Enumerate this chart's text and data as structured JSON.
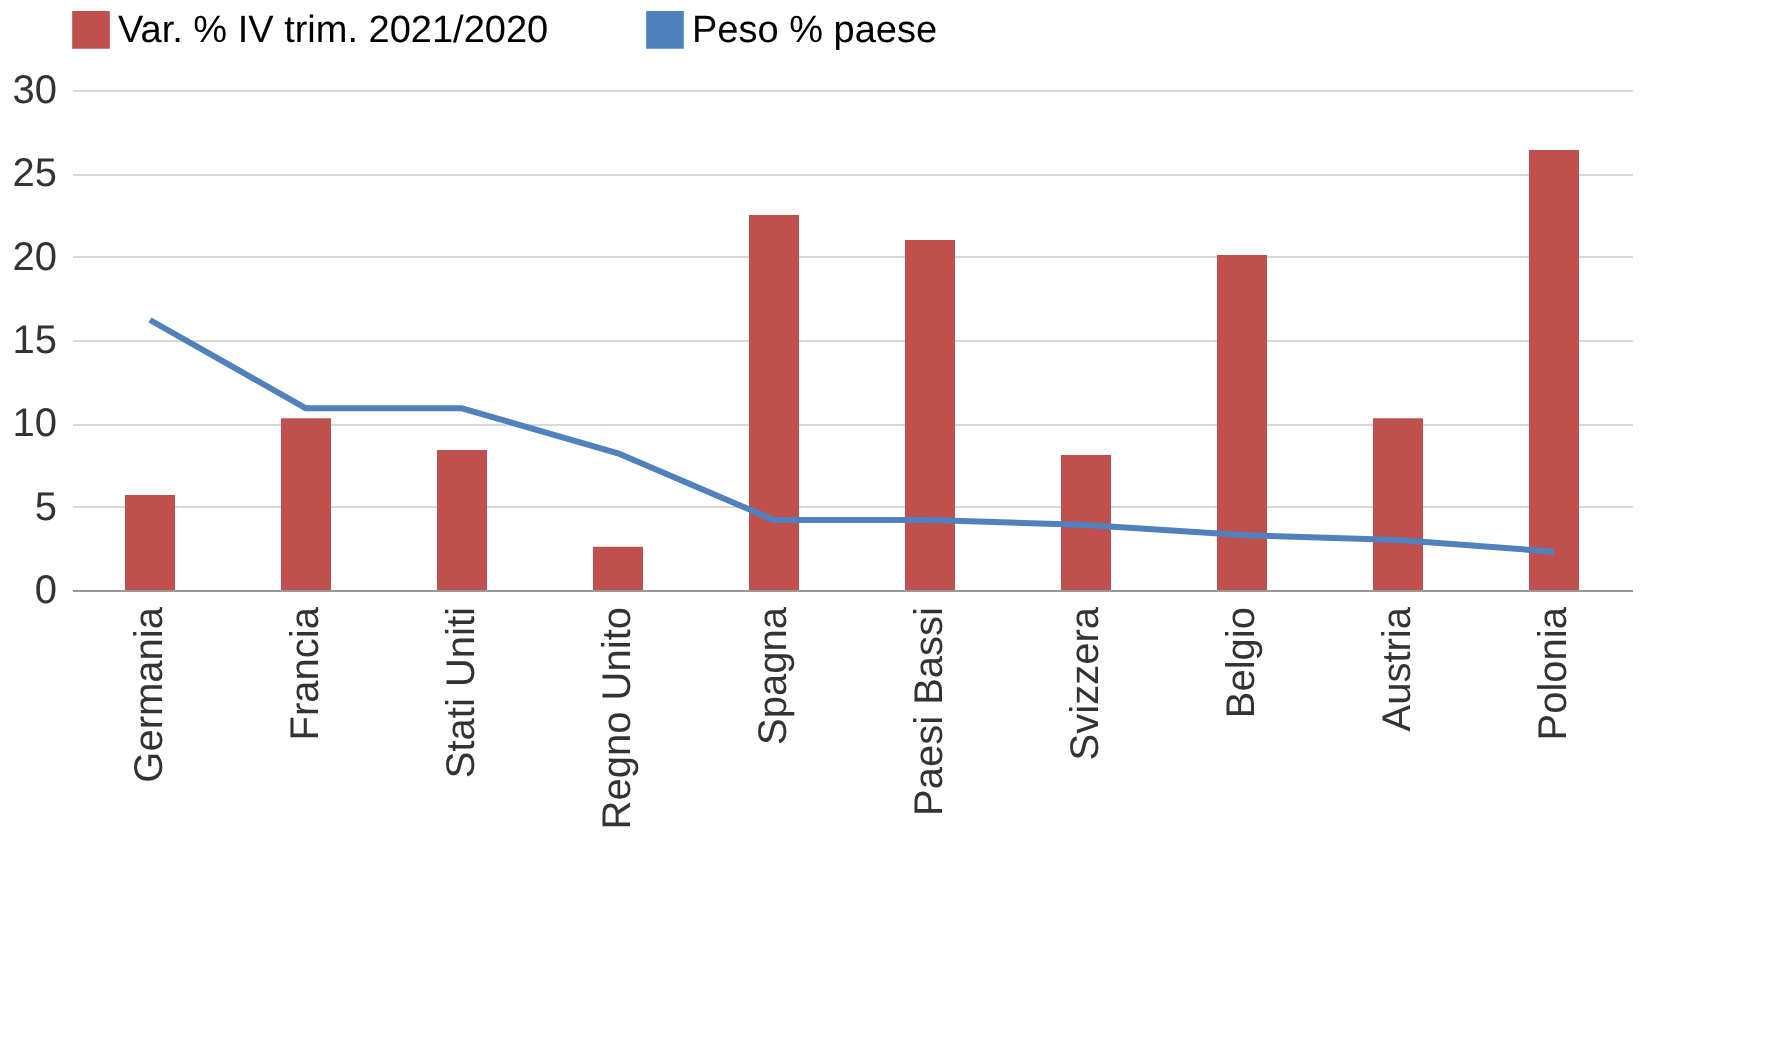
{
  "chart_data": {
    "type": "bar",
    "categories": [
      "Germania",
      "Francia",
      "Stati Uniti",
      "Regno Unito",
      "Spagna",
      "Paesi Bassi",
      "Svizzera",
      "Belgio",
      "Austria",
      "Polonia"
    ],
    "series": [
      {
        "name": "Var.  % IV trim. 2021/2020",
        "color": "#c0504d",
        "values": [
          5.7,
          10.3,
          8.4,
          2.6,
          22.5,
          21.0,
          8.1,
          20.1,
          10.3,
          26.4
        ]
      },
      {
        "name": "Peso % paese",
        "type": "line",
        "color": "#4f81bd",
        "values": [
          16.2,
          10.9,
          10.9,
          8.2,
          4.2,
          4.2,
          3.9,
          3.3,
          3.0,
          2.3
        ]
      }
    ],
    "ylim": [
      0,
      30
    ],
    "yticks": [
      0,
      5,
      10,
      15,
      20,
      25,
      30
    ],
    "grid": "y",
    "legend": "top",
    "marker": "none",
    "line_style": "solid"
  }
}
